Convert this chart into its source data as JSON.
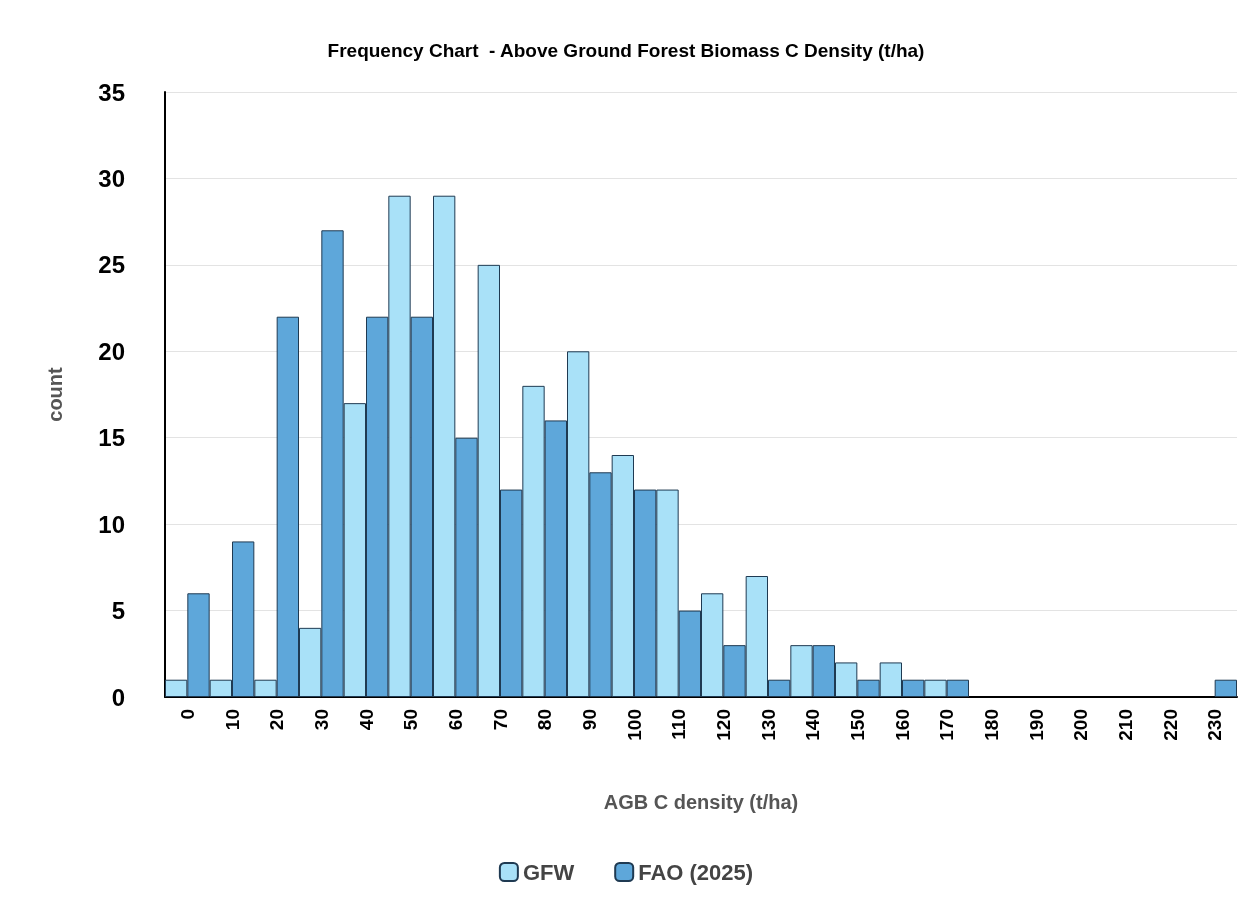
{
  "chart_data": {
    "type": "bar",
    "title": "Frequency Chart  - Above Ground Forest Biomass C Density (t/ha)",
    "xlabel": "AGB C density (t/ha)",
    "ylabel": "count",
    "categories": [
      "0",
      "10",
      "20",
      "30",
      "40",
      "50",
      "60",
      "70",
      "80",
      "90",
      "100",
      "110",
      "120",
      "130",
      "140",
      "150",
      "160",
      "170",
      "180",
      "190",
      "200",
      "210",
      "220",
      "230"
    ],
    "series": [
      {
        "name": "GFW",
        "color": "#a9e1f8",
        "values": [
          1,
          1,
          1,
          4,
          17,
          29,
          29,
          25,
          18,
          20,
          14,
          12,
          6,
          7,
          3,
          2,
          2,
          1,
          0,
          0,
          0,
          0,
          0,
          0
        ]
      },
      {
        "name": "FAO (2025)",
        "color": "#5ea7da",
        "values": [
          6,
          9,
          22,
          27,
          22,
          22,
          15,
          12,
          16,
          13,
          12,
          5,
          3,
          1,
          3,
          1,
          1,
          1,
          0,
          0,
          0,
          0,
          0,
          1
        ]
      }
    ],
    "ylim": [
      0,
      35
    ],
    "yticks": [
      0,
      5,
      10,
      15,
      20,
      25,
      30,
      35
    ],
    "grid": "y",
    "legend": "bottom"
  }
}
